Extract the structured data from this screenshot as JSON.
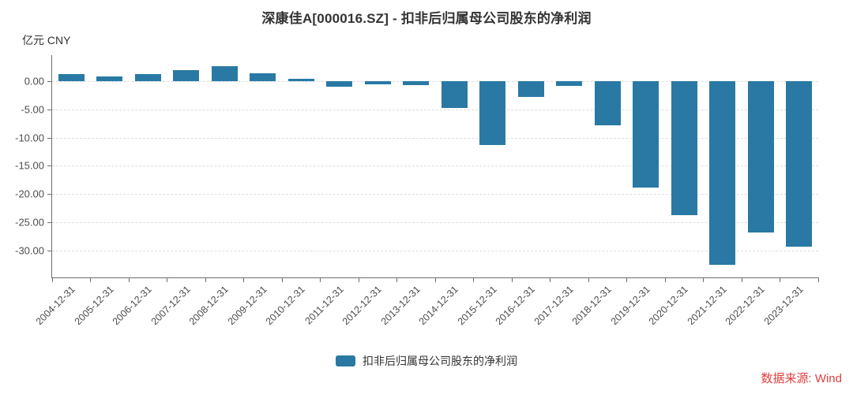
{
  "page": {
    "title": "深康佳A[000016.SZ] - 扣非后归属母公司股东的净利润",
    "unit_label": "亿元 CNY",
    "legend_label": "扣非后归属母公司股东的净利润",
    "source_label": "数据来源: Wind"
  },
  "colors": {
    "bar": "#2979a4",
    "source_text": "#e03e3e",
    "axis": "#6e6e6e",
    "grid": "#dddddd",
    "title_text": "#333333",
    "tick_text": "#4d4d4d"
  },
  "chart_data": {
    "type": "bar",
    "title": "深康佳A[000016.SZ] - 扣非后归属母公司股东的净利润",
    "unit": "亿元 CNY",
    "categories": [
      "2004-12-31",
      "2005-12-31",
      "2006-12-31",
      "2007-12-31",
      "2008-12-31",
      "2009-12-31",
      "2010-12-31",
      "2011-12-31",
      "2012-12-31",
      "2013-12-31",
      "2014-12-31",
      "2015-12-31",
      "2016-12-31",
      "2017-12-31",
      "2018-12-31",
      "2019-12-31",
      "2020-12-31",
      "2021-12-31",
      "2022-12-31",
      "2023-12-31"
    ],
    "series": [
      {
        "name": "扣非后归属母公司股东的净利润",
        "values": [
          1.2,
          0.85,
          1.2,
          2.0,
          2.7,
          1.4,
          0.45,
          -1.0,
          -0.55,
          -0.75,
          -4.7,
          -11.3,
          -2.8,
          -0.8,
          -7.8,
          -18.8,
          -23.7,
          -32.6,
          -26.8,
          -29.3
        ]
      }
    ],
    "ylabel": "亿元 CNY",
    "ylim": [
      -34.8,
      4.6
    ],
    "yticks": [
      0,
      -5,
      -10,
      -15,
      -20,
      -25,
      -30
    ],
    "ytick_format": "0.00",
    "grid": "horizontal-dashed",
    "legend_position": "bottom-center",
    "source": "数据来源: Wind"
  }
}
